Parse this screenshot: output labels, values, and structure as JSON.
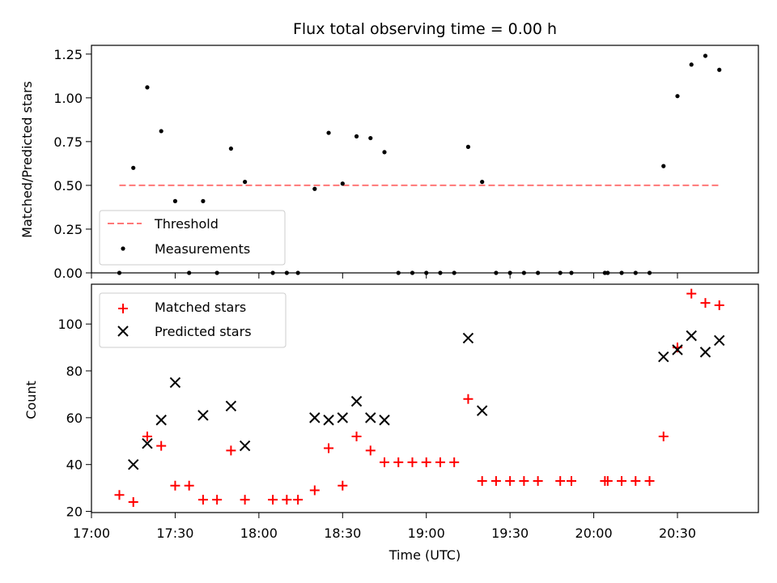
{
  "chart_data": [
    {
      "type": "scatter",
      "title": "Flux total observing time = 0.00 h",
      "xlabel": "",
      "ylabel": "Matched/Predicted stars",
      "xlim": [
        "17:00",
        "20:59"
      ],
      "ylim": [
        0,
        1.3
      ],
      "yticks": [
        "0.00",
        "0.25",
        "0.50",
        "0.75",
        "1.00",
        "1.25"
      ],
      "grid": false,
      "legend_position": "lower-left",
      "legend": [
        "Threshold",
        "Measurements"
      ],
      "threshold": {
        "name": "Threshold",
        "value": 0.5,
        "x_start": "17:10",
        "x_end": "20:45",
        "color": "#ff7777",
        "style": "dashed"
      },
      "series": [
        {
          "name": "Measurements",
          "marker": "dot",
          "color": "#000000",
          "points": [
            [
              "17:10",
              0.0
            ],
            [
              "17:15",
              0.6
            ],
            [
              "17:20",
              1.06
            ],
            [
              "17:25",
              0.81
            ],
            [
              "17:30",
              0.41
            ],
            [
              "17:35",
              0.0
            ],
            [
              "17:40",
              0.41
            ],
            [
              "17:45",
              0.0
            ],
            [
              "17:50",
              0.71
            ],
            [
              "17:55",
              0.52
            ],
            [
              "18:05",
              0.0
            ],
            [
              "18:10",
              0.0
            ],
            [
              "18:14",
              0.0
            ],
            [
              "18:20",
              0.48
            ],
            [
              "18:25",
              0.8
            ],
            [
              "18:30",
              0.51
            ],
            [
              "18:35",
              0.78
            ],
            [
              "18:40",
              0.77
            ],
            [
              "18:45",
              0.69
            ],
            [
              "18:50",
              0.0
            ],
            [
              "18:55",
              0.0
            ],
            [
              "19:00",
              0.0
            ],
            [
              "19:05",
              0.0
            ],
            [
              "19:10",
              0.0
            ],
            [
              "19:15",
              0.72
            ],
            [
              "19:20",
              0.52
            ],
            [
              "19:25",
              0.0
            ],
            [
              "19:30",
              0.0
            ],
            [
              "19:35",
              0.0
            ],
            [
              "19:40",
              0.0
            ],
            [
              "19:48",
              0.0
            ],
            [
              "19:52",
              0.0
            ],
            [
              "20:04",
              0.0
            ],
            [
              "20:05",
              0.0
            ],
            [
              "20:10",
              0.0
            ],
            [
              "20:15",
              0.0
            ],
            [
              "20:20",
              0.0
            ],
            [
              "20:25",
              0.61
            ],
            [
              "20:30",
              1.01
            ],
            [
              "20:35",
              1.19
            ],
            [
              "20:40",
              1.24
            ],
            [
              "20:45",
              1.16
            ]
          ]
        }
      ]
    },
    {
      "type": "scatter",
      "title": "",
      "xlabel": "Time (UTC)",
      "ylabel": "Count",
      "xlim": [
        "17:00",
        "20:59"
      ],
      "xticks": [
        "17:00",
        "17:30",
        "18:00",
        "18:30",
        "19:00",
        "19:30",
        "20:00",
        "20:30"
      ],
      "ylim": [
        19.5,
        117
      ],
      "yticks": [
        "20",
        "40",
        "60",
        "80",
        "100"
      ],
      "grid": false,
      "legend_position": "upper-left",
      "legend": [
        "Matched stars",
        "Predicted stars"
      ],
      "series": [
        {
          "name": "Matched stars",
          "marker": "plus",
          "color": "#ff0000",
          "points": [
            [
              "17:10",
              27
            ],
            [
              "17:15",
              24
            ],
            [
              "17:20",
              52
            ],
            [
              "17:25",
              48
            ],
            [
              "17:30",
              31
            ],
            [
              "17:35",
              31
            ],
            [
              "17:40",
              25
            ],
            [
              "17:45",
              25
            ],
            [
              "17:50",
              46
            ],
            [
              "17:55",
              25
            ],
            [
              "18:05",
              25
            ],
            [
              "18:10",
              25
            ],
            [
              "18:14",
              25
            ],
            [
              "18:20",
              29
            ],
            [
              "18:25",
              47
            ],
            [
              "18:30",
              31
            ],
            [
              "18:35",
              52
            ],
            [
              "18:40",
              46
            ],
            [
              "18:45",
              41
            ],
            [
              "18:50",
              41
            ],
            [
              "18:55",
              41
            ],
            [
              "19:00",
              41
            ],
            [
              "19:05",
              41
            ],
            [
              "19:10",
              41
            ],
            [
              "19:15",
              68
            ],
            [
              "19:20",
              33
            ],
            [
              "19:25",
              33
            ],
            [
              "19:30",
              33
            ],
            [
              "19:35",
              33
            ],
            [
              "19:40",
              33
            ],
            [
              "19:48",
              33
            ],
            [
              "19:52",
              33
            ],
            [
              "20:04",
              33
            ],
            [
              "20:05",
              33
            ],
            [
              "20:10",
              33
            ],
            [
              "20:15",
              33
            ],
            [
              "20:20",
              33
            ],
            [
              "20:25",
              52
            ],
            [
              "20:30",
              90
            ],
            [
              "20:35",
              113
            ],
            [
              "20:40",
              109
            ],
            [
              "20:45",
              108
            ]
          ]
        },
        {
          "name": "Predicted stars",
          "marker": "x",
          "color": "#000000",
          "points": [
            [
              "17:15",
              40
            ],
            [
              "17:20",
              49
            ],
            [
              "17:25",
              59
            ],
            [
              "17:30",
              75
            ],
            [
              "17:40",
              61
            ],
            [
              "17:50",
              65
            ],
            [
              "17:55",
              48
            ],
            [
              "18:20",
              60
            ],
            [
              "18:25",
              59
            ],
            [
              "18:30",
              60
            ],
            [
              "18:35",
              67
            ],
            [
              "18:40",
              60
            ],
            [
              "18:45",
              59
            ],
            [
              "19:15",
              94
            ],
            [
              "19:20",
              63
            ],
            [
              "20:25",
              86
            ],
            [
              "20:30",
              89
            ],
            [
              "20:35",
              95
            ],
            [
              "20:40",
              88
            ],
            [
              "20:45",
              93
            ]
          ]
        }
      ]
    }
  ]
}
